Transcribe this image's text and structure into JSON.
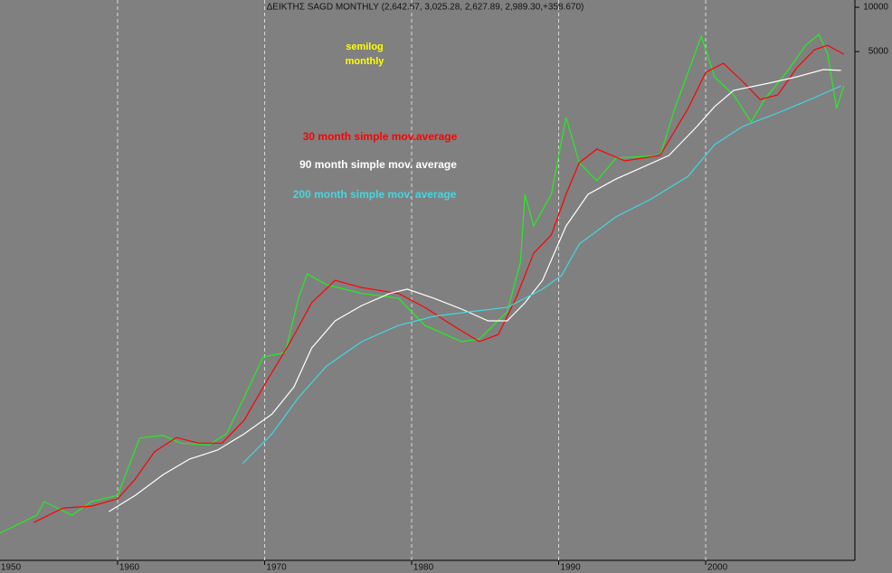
{
  "chart_data": {
    "type": "line",
    "title": "ΔΕΙΚΤΗΣ SAGD MONTHLY (2,642.57, 3,025.28, 2,627.89, 2,989.30,+358.670)",
    "annotations": [
      "semilog",
      "monthly"
    ],
    "log_scale": true,
    "grid": true,
    "xlim": [
      1952,
      2010.15
    ],
    "xticks": [
      1950,
      1960,
      1970,
      1980,
      1990,
      2000
    ],
    "ylim": [
      1.76,
      11200
    ],
    "yticks": [
      10000,
      5000
    ],
    "series": [
      {
        "color": "#22ee22",
        "x": [
          1952.0,
          1954.5,
          1955.0,
          1956.9,
          1958.2,
          1960.0,
          1961.5,
          1963.1,
          1964.3,
          1966.2,
          1967.4,
          1968.6,
          1969.9,
          1971.4,
          1972.3,
          1972.9,
          1974.2,
          1976.6,
          1979.1,
          1980.9,
          1983.4,
          1984.6,
          1986.5,
          1987.4,
          1987.7,
          1988.3,
          1989.5,
          1990.5,
          1991.4,
          1992.6,
          1993.9,
          1996.9,
          1997.9,
          1998.8,
          1999.7,
          2000.6,
          2001.9,
          2003.1,
          2004.0,
          2005.5,
          2006.8,
          2007.7,
          2008.3,
          2008.9,
          2009.4
        ],
        "values": [
          2.69,
          3.56,
          4.41,
          3.56,
          4.41,
          4.86,
          11.9,
          12.4,
          11.0,
          10.7,
          12.7,
          22.4,
          42.3,
          45.3,
          106,
          155,
          131,
          114,
          106,
          69.2,
          53.7,
          56.0,
          85.7,
          186,
          537,
          327,
          537,
          1786,
          881,
          664,
          945,
          986,
          2056,
          3614,
          6368,
          3373,
          2541,
          1663,
          2366,
          3614,
          5521,
          6546,
          4797,
          2056,
          2926
        ]
      },
      {
        "name": "30 month simple mov.average",
        "color": "#ff0000",
        "x": [
          1954.3,
          1956.3,
          1958.2,
          1960.0,
          1961.2,
          1962.5,
          1964.0,
          1965.5,
          1967.1,
          1968.6,
          1970.2,
          1971.7,
          1973.2,
          1974.8,
          1976.6,
          1979.1,
          1980.9,
          1982.8,
          1984.6,
          1985.9,
          1987.1,
          1988.3,
          1989.5,
          1990.5,
          1991.4,
          1992.6,
          1994.5,
          1996.9,
          1998.8,
          2000.0,
          2001.2,
          2002.5,
          2003.7,
          2004.9,
          2006.2,
          2007.4,
          2008.3,
          2009.4
        ],
        "values": [
          3.18,
          3.99,
          4.1,
          4.6,
          6.28,
          9.59,
          12.0,
          11.0,
          11.0,
          15.7,
          29.7,
          52.2,
          98.6,
          140,
          125,
          114,
          91.8,
          69.2,
          53.7,
          60.1,
          106,
          214,
          284,
          537,
          881,
          1089,
          906,
          986,
          2056,
          3614,
          4165,
          3141,
          2366,
          2541,
          3882,
          5148,
          5521,
          4797
        ]
      },
      {
        "name": "90 month simple mov. average",
        "color": "#ffffff",
        "x": [
          1959.4,
          1961.2,
          1963.1,
          1964.9,
          1966.8,
          1968.6,
          1970.5,
          1972.0,
          1973.2,
          1974.8,
          1976.6,
          1978.5,
          1979.7,
          1981.5,
          1983.4,
          1985.2,
          1986.5,
          1987.7,
          1988.9,
          1990.5,
          1992.0,
          1993.9,
          1995.7,
          1997.5,
          1999.4,
          2000.6,
          2001.9,
          2004.3,
          2006.2,
          2008.0,
          2009.2
        ],
        "values": [
          3.77,
          4.86,
          6.73,
          8.57,
          9.86,
          12.7,
          17.3,
          26.5,
          48.6,
          74.3,
          94.4,
          114,
          122,
          106,
          89.3,
          74.3,
          74.3,
          98.6,
          140,
          327,
          537,
          682,
          820,
          986,
          1549,
          2113,
          2729,
          3054,
          3373,
          3776,
          3724
        ]
      },
      {
        "name": "200 month simple mov. average",
        "color": "#40d8e0",
        "x": [
          1968.5,
          1970.5,
          1972.3,
          1974.2,
          1976.6,
          1979.1,
          1981.5,
          1984.0,
          1986.5,
          1988.9,
          1990.2,
          1991.4,
          1993.9,
          1996.3,
          1998.8,
          2000.6,
          2002.5,
          2004.9,
          2007.4,
          2009.2
        ],
        "values": [
          7.98,
          12.7,
          22.4,
          36.6,
          53.7,
          69.2,
          79.8,
          85.7,
          91.8,
          122,
          151,
          247,
          378,
          500,
          713,
          1167,
          1549,
          1916,
          2436,
          2926
        ]
      }
    ]
  }
}
